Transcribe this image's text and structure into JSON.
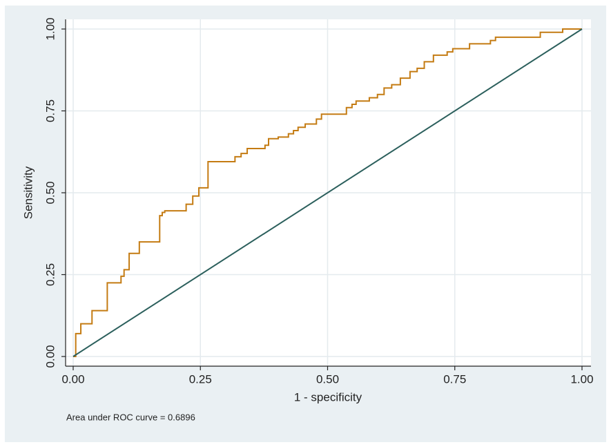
{
  "chart_data": {
    "type": "line",
    "xlabel": "1 - specificity",
    "ylabel": "Sensitivity",
    "annotation": "Area under ROC curve = 0.6896",
    "xlim": [
      0,
      1
    ],
    "ylim": [
      0,
      1
    ],
    "xticks": [
      {
        "value": 0,
        "label": "0.00"
      },
      {
        "value": 0.25,
        "label": "0.25"
      },
      {
        "value": 0.5,
        "label": "0.50"
      },
      {
        "value": 0.75,
        "label": "0.75"
      },
      {
        "value": 1,
        "label": "1.00"
      }
    ],
    "yticks": [
      {
        "value": 0,
        "label": "0.00"
      },
      {
        "value": 0.25,
        "label": "0.25"
      },
      {
        "value": 0.5,
        "label": "0.50"
      },
      {
        "value": 0.75,
        "label": "0.75"
      },
      {
        "value": 1,
        "label": "1.00"
      }
    ],
    "grid": true,
    "series": [
      {
        "color": "#c47b12",
        "x": [
          0,
          0.005,
          0.005,
          0.015,
          0.015,
          0.037,
          0.037,
          0.067,
          0.067,
          0.094,
          0.094,
          0.1,
          0.1,
          0.11,
          0.11,
          0.13,
          0.13,
          0.17,
          0.17,
          0.175,
          0.175,
          0.18,
          0.18,
          0.222,
          0.222,
          0.235,
          0.235,
          0.247,
          0.247,
          0.265,
          0.265,
          0.318,
          0.318,
          0.33,
          0.33,
          0.342,
          0.342,
          0.377,
          0.377,
          0.384,
          0.384,
          0.403,
          0.403,
          0.423,
          0.423,
          0.433,
          0.433,
          0.442,
          0.442,
          0.456,
          0.456,
          0.478,
          0.478,
          0.488,
          0.488,
          0.537,
          0.537,
          0.548,
          0.548,
          0.556,
          0.556,
          0.582,
          0.582,
          0.598,
          0.598,
          0.611,
          0.611,
          0.626,
          0.626,
          0.643,
          0.643,
          0.662,
          0.662,
          0.676,
          0.676,
          0.69,
          0.69,
          0.708,
          0.708,
          0.735,
          0.735,
          0.746,
          0.746,
          0.779,
          0.779,
          0.82,
          0.82,
          0.83,
          0.83,
          0.918,
          0.918,
          0.962,
          0.962,
          1
        ],
        "values": [
          0,
          0,
          0.07,
          0.07,
          0.1,
          0.1,
          0.14,
          0.14,
          0.225,
          0.225,
          0.245,
          0.245,
          0.265,
          0.265,
          0.315,
          0.315,
          0.35,
          0.35,
          0.43,
          0.43,
          0.44,
          0.44,
          0.445,
          0.445,
          0.465,
          0.465,
          0.49,
          0.49,
          0.515,
          0.515,
          0.595,
          0.595,
          0.61,
          0.61,
          0.62,
          0.62,
          0.635,
          0.635,
          0.645,
          0.645,
          0.665,
          0.665,
          0.67,
          0.67,
          0.68,
          0.68,
          0.69,
          0.69,
          0.7,
          0.7,
          0.71,
          0.71,
          0.725,
          0.725,
          0.74,
          0.74,
          0.76,
          0.76,
          0.77,
          0.77,
          0.78,
          0.78,
          0.79,
          0.79,
          0.8,
          0.8,
          0.82,
          0.82,
          0.83,
          0.83,
          0.85,
          0.85,
          0.87,
          0.87,
          0.88,
          0.88,
          0.9,
          0.9,
          0.92,
          0.92,
          0.93,
          0.93,
          0.94,
          0.94,
          0.955,
          0.955,
          0.965,
          0.965,
          0.975,
          0.975,
          0.99,
          0.99,
          1.0,
          1.0
        ]
      },
      {
        "color": "#2b5f5c",
        "x": [
          0,
          1
        ],
        "values": [
          0,
          1
        ]
      }
    ]
  }
}
